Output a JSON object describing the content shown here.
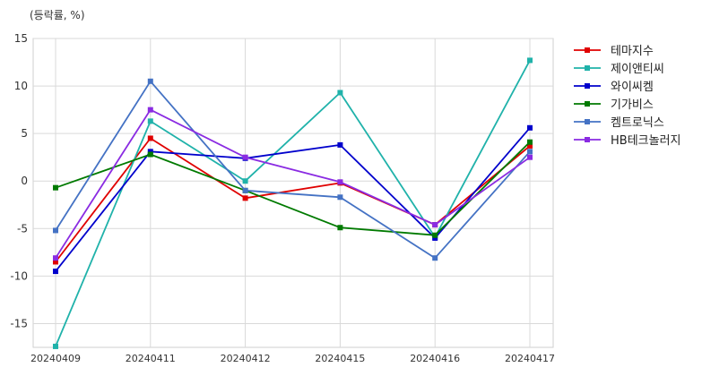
{
  "chart_data": {
    "type": "line",
    "unit_label": "(등락률, %)",
    "categories": [
      "20240409",
      "20240411",
      "20240412",
      "20240415",
      "20240416",
      "20240417"
    ],
    "ylim": [
      -17.5,
      15
    ],
    "yticks": [
      15,
      10,
      5,
      0,
      -5,
      -10,
      -15
    ],
    "grid": true,
    "legend_position": "right",
    "series": [
      {
        "name": "테마지수",
        "color": "#e00000",
        "values": [
          -8.5,
          4.5,
          -1.8,
          -0.2,
          -4.6,
          3.7
        ]
      },
      {
        "name": "제이앤티씨",
        "color": "#20b2aa",
        "values": [
          -17.4,
          6.3,
          0.0,
          9.3,
          -5.9,
          12.7
        ]
      },
      {
        "name": "와이씨켐",
        "color": "#0000cc",
        "values": [
          -9.5,
          3.1,
          2.4,
          3.8,
          -6.0,
          5.6
        ]
      },
      {
        "name": "기가비스",
        "color": "#007a00",
        "values": [
          -0.7,
          2.8,
          -1.0,
          -4.9,
          -5.7,
          4.1
        ]
      },
      {
        "name": "켐트로닉스",
        "color": "#4472c4",
        "values": [
          -5.2,
          10.5,
          -1.0,
          -1.7,
          -8.1,
          3.1
        ]
      },
      {
        "name": "HB테크놀러지",
        "color": "#8a2be2",
        "values": [
          -8.1,
          7.5,
          2.5,
          -0.1,
          -4.6,
          2.5
        ]
      }
    ]
  }
}
